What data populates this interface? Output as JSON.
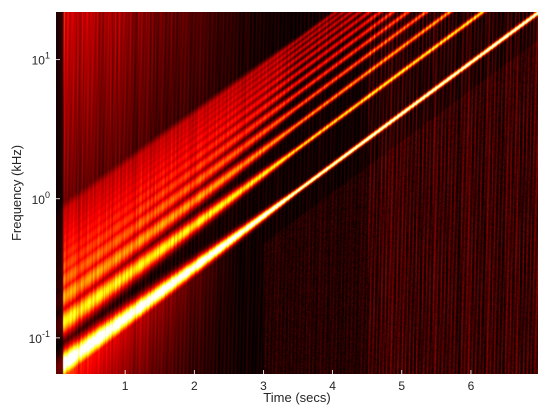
{
  "chart_data": {
    "type": "heatmap",
    "title": "",
    "xlabel": "Time (secs)",
    "ylabel": "Frequency (kHz)",
    "xlim": [
      0,
      6.97
    ],
    "ylim": [
      0.055,
      22
    ],
    "yscale": "log",
    "colormap": "hot",
    "grid": false,
    "legend": "none",
    "x_ticks": [
      {
        "value": 1,
        "label": "1"
      },
      {
        "value": 2,
        "label": "2"
      },
      {
        "value": 3,
        "label": "3"
      },
      {
        "value": 4,
        "label": "4"
      },
      {
        "value": 5,
        "label": "5"
      },
      {
        "value": 6,
        "label": "6"
      }
    ],
    "y_ticks": [
      {
        "value": 0.1,
        "base": "10",
        "exp": "-1"
      },
      {
        "value": 1,
        "base": "10",
        "exp": "0"
      },
      {
        "value": 10,
        "base": "10",
        "exp": "1"
      }
    ],
    "chirp": {
      "fundamental_khz_at_t0": 0.06,
      "fundamental_khz_at_end": 22,
      "harmonics_visible": 12
    }
  }
}
